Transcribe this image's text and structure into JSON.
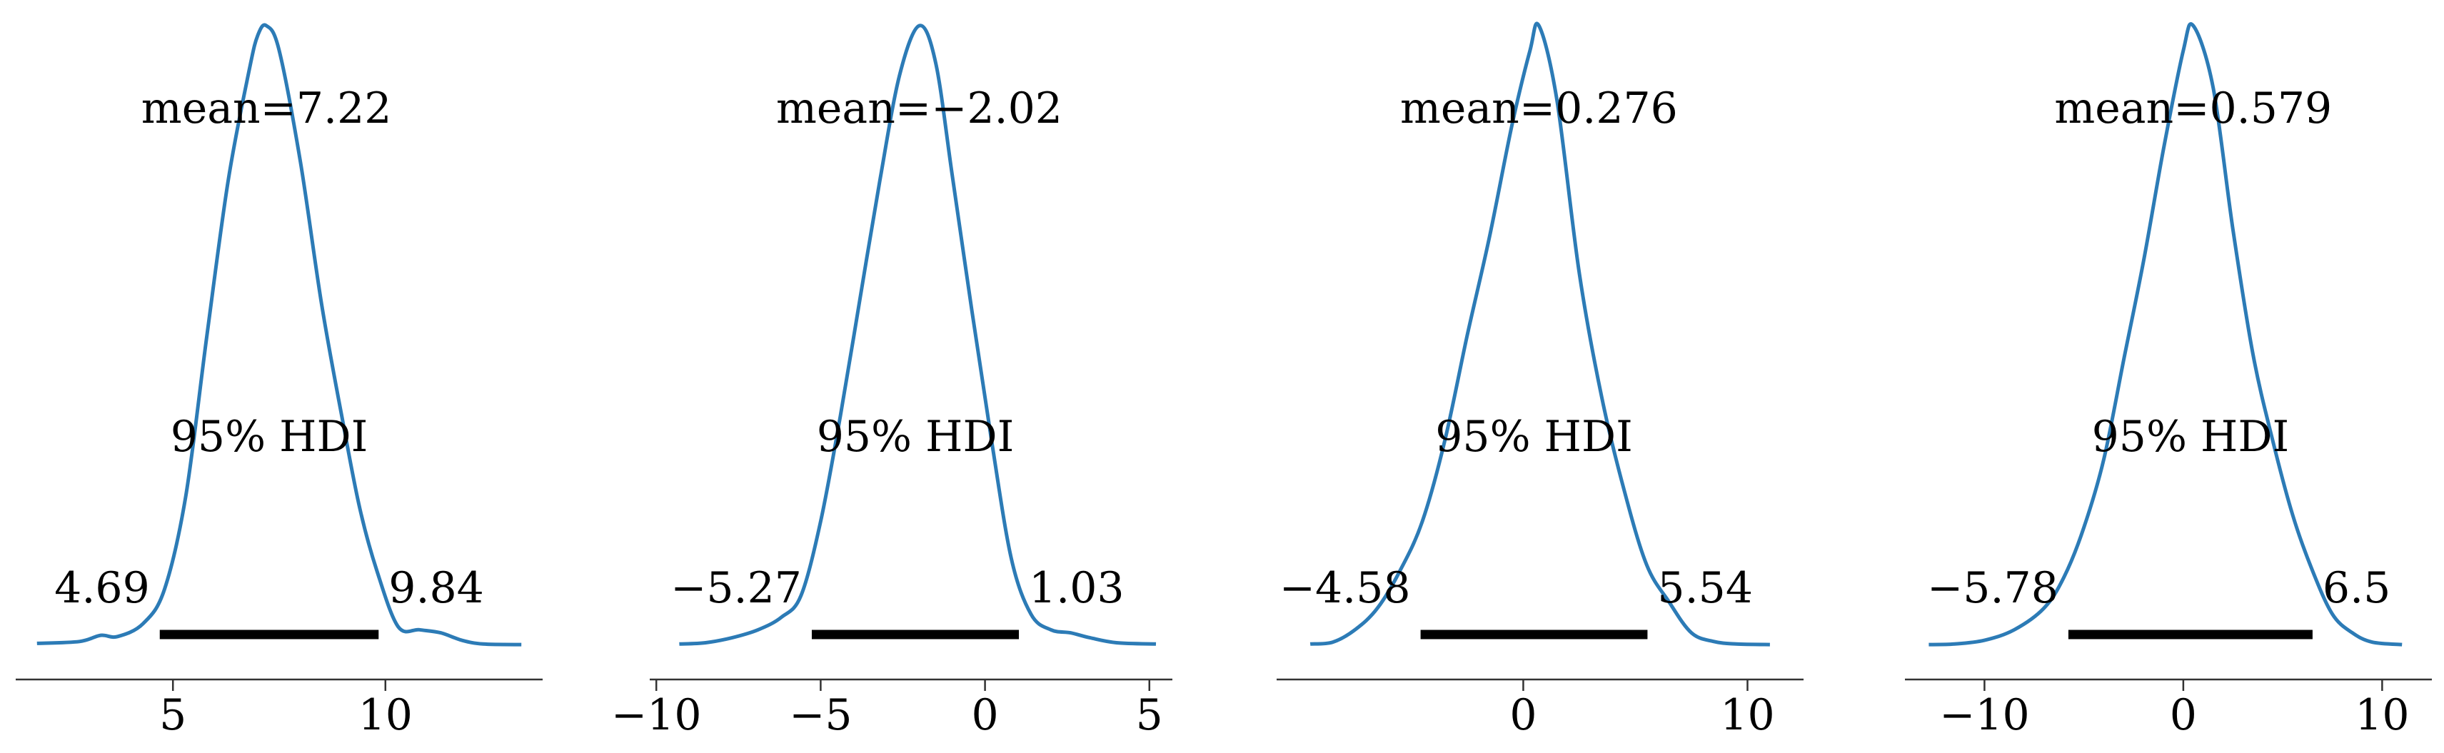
{
  "chart_data": [
    {
      "type": "area",
      "title": "",
      "xlabel": "",
      "ylabel": "",
      "xlim": [
        1.3,
        13.7
      ],
      "xticks": [
        5,
        10
      ],
      "xtick_labels": [
        "5",
        "10"
      ],
      "mean_label": "mean=7.22",
      "hdi_label": "95% HDI",
      "hdi_low": 4.69,
      "hdi_high": 9.84,
      "hdi_low_label": "4.69",
      "hdi_high_label": "9.84",
      "density": {
        "x": [
          1.8,
          2.8,
          3.3,
          3.7,
          4.3,
          4.8,
          5.3,
          5.8,
          6.3,
          6.8,
          7.0,
          7.2,
          7.5,
          8.0,
          8.5,
          9.0,
          9.4,
          9.8,
          10.3,
          10.8,
          11.3,
          11.8,
          12.3,
          13.2
        ],
        "y": [
          0.003,
          0.006,
          0.016,
          0.014,
          0.035,
          0.09,
          0.24,
          0.5,
          0.75,
          0.93,
          0.985,
          1.0,
          0.96,
          0.78,
          0.55,
          0.36,
          0.22,
          0.12,
          0.03,
          0.025,
          0.02,
          0.008,
          0.002,
          0.001
        ]
      }
    },
    {
      "type": "area",
      "title": "",
      "xlabel": "",
      "ylabel": "",
      "xlim": [
        -10.2,
        5.7
      ],
      "xticks": [
        -10,
        -5,
        0,
        5
      ],
      "xtick_labels": [
        "−10",
        "−5",
        "0",
        "5"
      ],
      "mean_label": "mean=−2.02",
      "hdi_label": "95% HDI",
      "hdi_low": -5.27,
      "hdi_high": 1.03,
      "hdi_low_label": "−5.27",
      "hdi_high_label": "1.03",
      "density": {
        "x": [
          -9.3,
          -8.5,
          -7.7,
          -6.9,
          -6.2,
          -5.6,
          -5.0,
          -4.4,
          -3.8,
          -3.2,
          -2.6,
          -2.0,
          -1.5,
          -1.0,
          -0.4,
          0.2,
          0.8,
          1.4,
          2.0,
          2.6,
          3.2,
          4.0,
          5.2
        ],
        "y": [
          0.002,
          0.004,
          0.012,
          0.025,
          0.045,
          0.08,
          0.2,
          0.37,
          0.56,
          0.75,
          0.92,
          1.0,
          0.94,
          0.76,
          0.54,
          0.33,
          0.14,
          0.05,
          0.025,
          0.02,
          0.012,
          0.004,
          0.002
        ]
      }
    },
    {
      "type": "area",
      "title": "",
      "xlabel": "",
      "ylabel": "",
      "xlim": [
        -11.0,
        12.5
      ],
      "xticks": [
        0,
        10
      ],
      "xtick_labels": [
        "0",
        "10"
      ],
      "mean_label": "mean=0.276",
      "hdi_label": "95% HDI",
      "hdi_low": -4.58,
      "hdi_high": 5.54,
      "hdi_low_label": "−4.58",
      "hdi_high_label": "5.54",
      "density": {
        "x": [
          -9.5,
          -8.5,
          -7.5,
          -6.5,
          -5.5,
          -4.5,
          -3.5,
          -2.5,
          -1.5,
          -0.5,
          0.3,
          0.7,
          1.5,
          2.5,
          3.5,
          4.5,
          5.5,
          6.5,
          7.5,
          8.5,
          9.5,
          11.0
        ],
        "y": [
          0.002,
          0.005,
          0.025,
          0.06,
          0.12,
          0.2,
          0.33,
          0.5,
          0.66,
          0.84,
          0.96,
          1.0,
          0.88,
          0.6,
          0.4,
          0.25,
          0.13,
          0.07,
          0.02,
          0.006,
          0.002,
          0.001
        ]
      }
    },
    {
      "type": "area",
      "title": "",
      "xlabel": "",
      "ylabel": "",
      "xlim": [
        -14.0,
        12.5
      ],
      "xticks": [
        -10,
        0,
        10
      ],
      "xtick_labels": [
        "−10",
        "0",
        "10"
      ],
      "mean_label": "mean=0.579",
      "hdi_label": "95% HDI",
      "hdi_low": -5.78,
      "hdi_high": 6.5,
      "hdi_low_label": "−5.78",
      "hdi_high_label": "6.5",
      "density": {
        "x": [
          -12.8,
          -11.5,
          -10.0,
          -8.5,
          -7.0,
          -6.0,
          -5.0,
          -4.0,
          -3.0,
          -2.0,
          -1.0,
          0.0,
          0.5,
          1.5,
          2.5,
          3.5,
          4.5,
          5.5,
          6.5,
          7.5,
          8.5,
          9.5,
          11.0
        ],
        "y": [
          0.001,
          0.002,
          0.008,
          0.025,
          0.06,
          0.11,
          0.19,
          0.3,
          0.46,
          0.62,
          0.8,
          0.96,
          1.0,
          0.9,
          0.67,
          0.47,
          0.33,
          0.21,
          0.12,
          0.05,
          0.02,
          0.005,
          0.001
        ]
      }
    }
  ]
}
